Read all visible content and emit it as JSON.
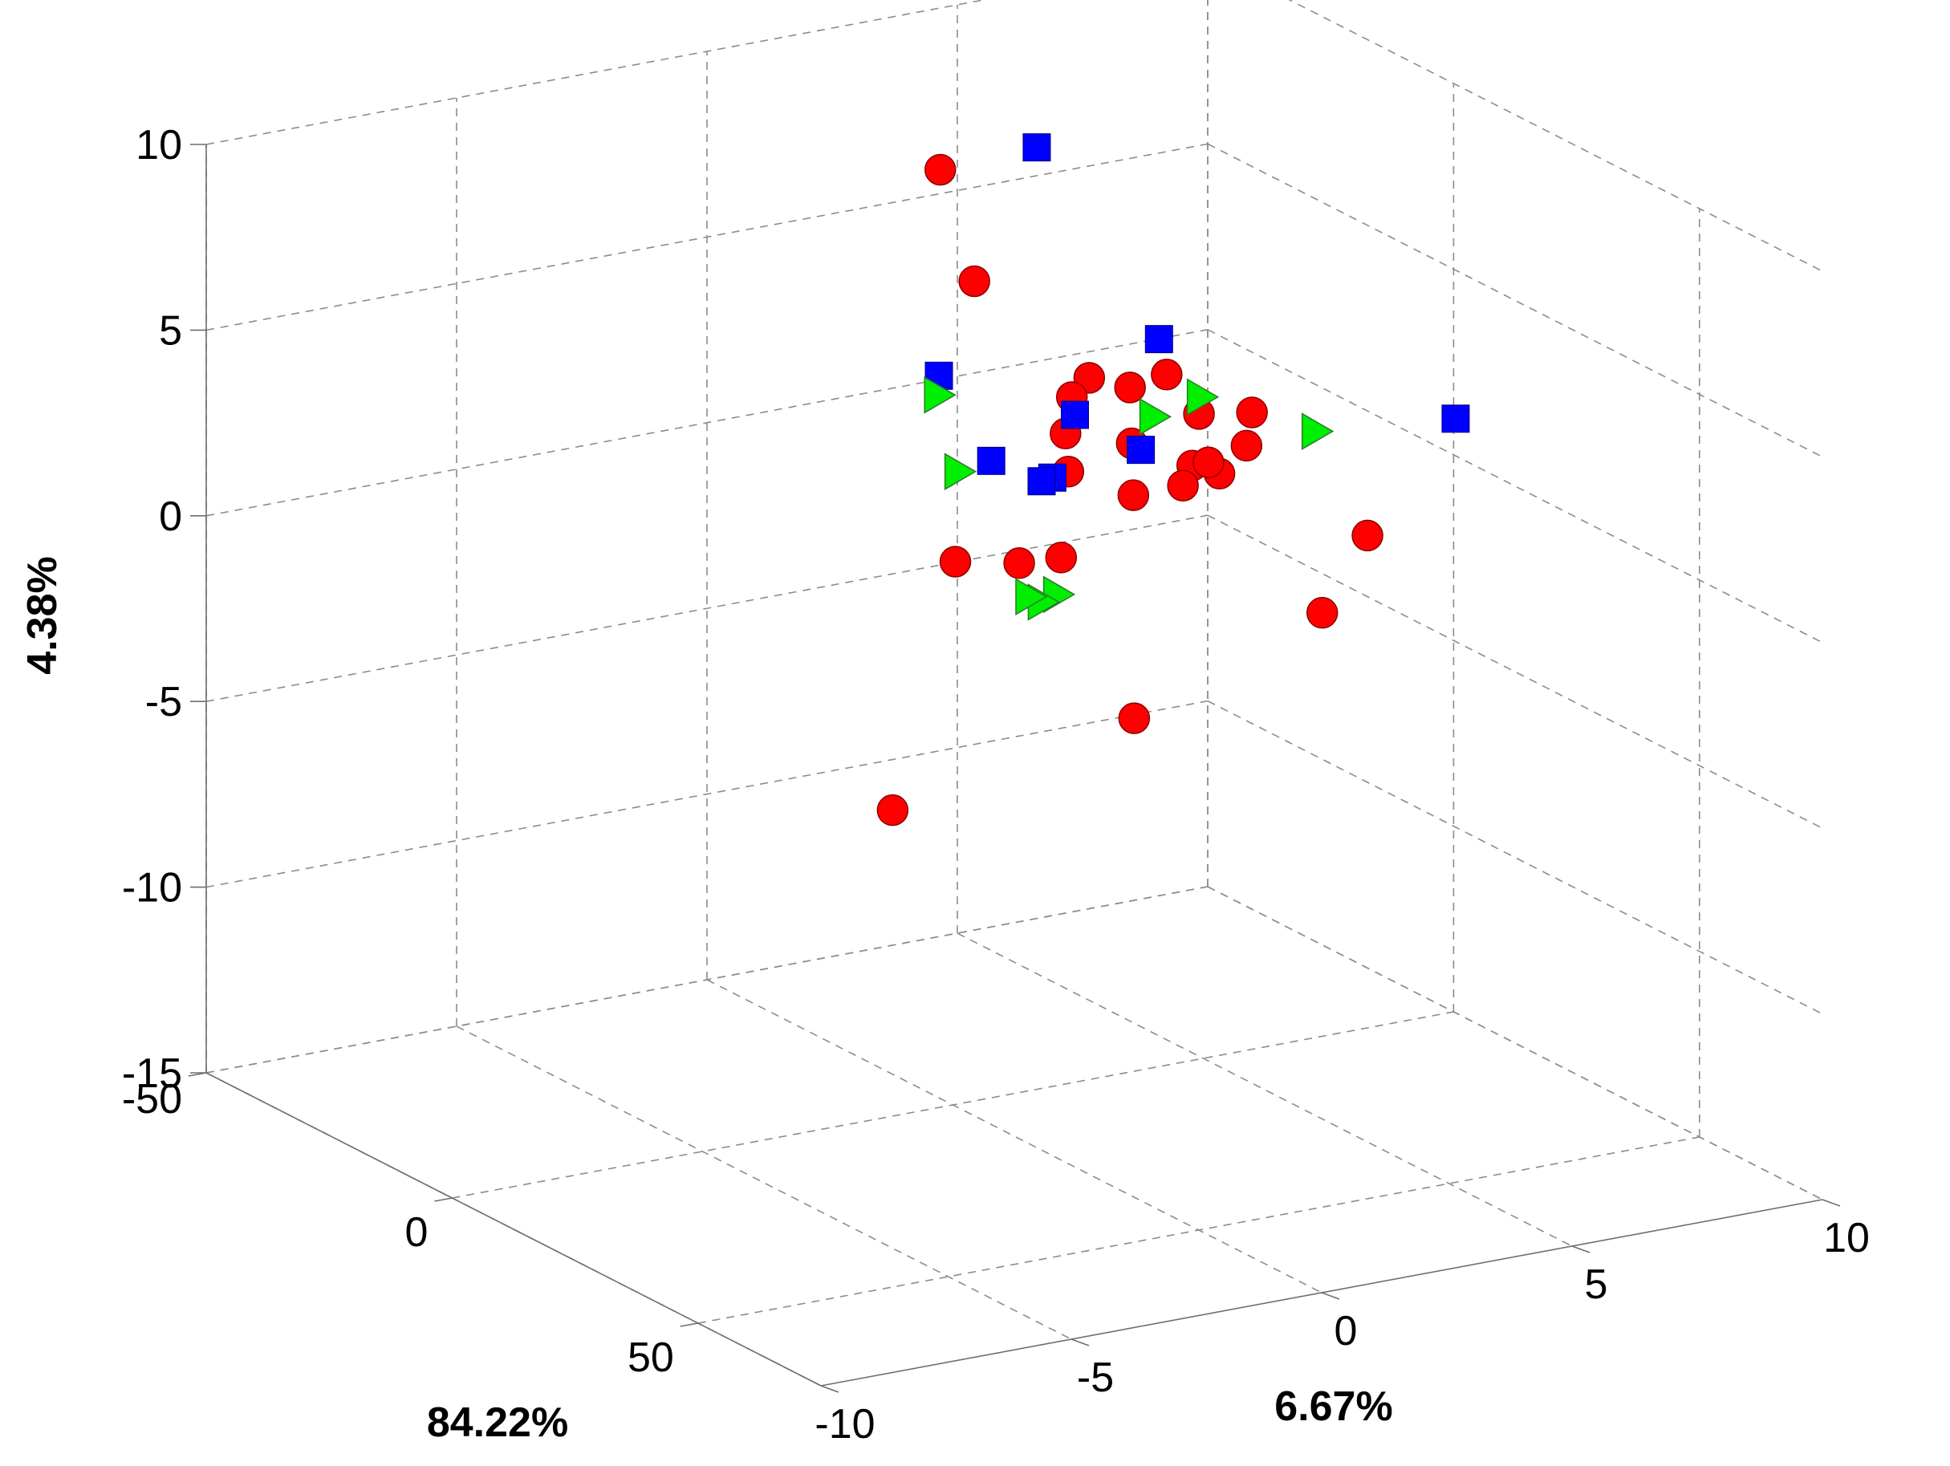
{
  "chart_data": {
    "type": "scatter3d",
    "title": "",
    "xlabel": "84.22%",
    "ylabel": "6.67%",
    "zlabel": "4.38%",
    "xlim": [
      -50,
      75
    ],
    "ylim": [
      -10,
      10
    ],
    "zlim": [
      -15,
      10
    ],
    "xticks": [
      "-50",
      "0",
      "50"
    ],
    "yticks": [
      "-10",
      "-5",
      "0",
      "5",
      "10"
    ],
    "zticks": [
      "-15",
      "-10",
      "-5",
      "0",
      "5",
      "10"
    ],
    "grid": true,
    "legend": "none",
    "colors": {
      "circle": "#ff0000",
      "square": "#0000ff",
      "triangle": "#00ee00"
    },
    "series": [
      {
        "marker": "circle",
        "points": [
          [
            -33.1,
            3.0,
            7.2
          ],
          [
            0.3,
            0.4,
            7.1
          ],
          [
            -13.0,
            4.0,
            2.7
          ],
          [
            -5.6,
            2.8,
            2.0
          ],
          [
            14.5,
            3.9,
            2.0
          ],
          [
            30.7,
            1.9,
            5.2
          ],
          [
            29.6,
            -0.6,
            4.2
          ],
          [
            -6.5,
            2.8,
            -1.4
          ],
          [
            -2.8,
            1.6,
            -1.0
          ],
          [
            -5.4,
            4.8,
            3.1
          ],
          [
            -0.2,
            4.8,
            1.0
          ],
          [
            -9.4,
            3.3,
            2.6
          ],
          [
            19.4,
            1.7,
            2.3
          ],
          [
            20.1,
            4.0,
            4.0
          ],
          [
            -4.7,
            4.0,
            3.0
          ],
          [
            22.2,
            6.1,
            0.3
          ],
          [
            -24.8,
            8.3,
            -1.0
          ],
          [
            13.0,
            6.1,
            -2.4
          ],
          [
            19.3,
            2.7,
            2.3
          ],
          [
            36.7,
            1.5,
            4.4
          ],
          [
            -1.3,
            3.7,
            1.8
          ],
          [
            -5.6,
            0.6,
            -0.9
          ],
          [
            -26.5,
            1.4,
            -9.2
          ],
          [
            -12.0,
            4.8,
            -6.6
          ]
        ]
      },
      {
        "marker": "square",
        "points": [
          [
            -42.0,
            5.8,
            6.5
          ],
          [
            -12.0,
            0.9,
            3.6
          ],
          [
            -15.1,
            5.6,
            3.2
          ],
          [
            -7.6,
            4.5,
            1.0
          ],
          [
            19.0,
            -1.1,
            3.9
          ],
          [
            1.4,
            2.3,
            3.1
          ],
          [
            13.1,
            0.7,
            2.6
          ],
          [
            -12.5,
            3.0,
            0.2
          ],
          [
            33.0,
            6.8,
            4.0
          ]
        ]
      },
      {
        "marker": "triangle",
        "points": [
          [
            -18.4,
            1.5,
            2.5
          ],
          [
            -0.3,
            2.1,
            -1.8
          ],
          [
            -11.2,
            1.2,
            1.0
          ],
          [
            26.1,
            -0.8,
            0.5
          ],
          [
            35.8,
            -2.0,
            1.6
          ],
          [
            4.0,
            3.6,
            2.9
          ],
          [
            -5.7,
            5.5,
            2.3
          ],
          [
            9.5,
            6.3,
            2.2
          ]
        ]
      }
    ]
  }
}
